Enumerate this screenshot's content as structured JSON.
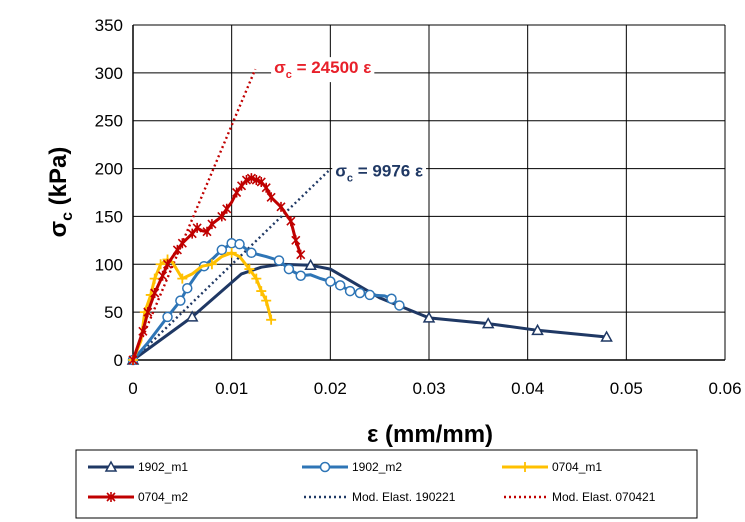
{
  "chart_data": {
    "type": "scatter",
    "title": "",
    "xlabel": "ε (mm/mm)",
    "ylabel_main": "σ",
    "ylabel_sub": "c",
    "ylabel_unit": " (kPa)",
    "xlim": [
      0,
      0.06
    ],
    "ylim": [
      0,
      350
    ],
    "xticks": [
      0,
      0.01,
      0.02,
      0.03,
      0.04,
      0.05,
      0.06
    ],
    "xtick_labels": [
      "0",
      "0.01",
      "0.02",
      "0.03",
      "0.04",
      "0.05",
      "0.06"
    ],
    "yticks": [
      0,
      50,
      100,
      150,
      200,
      250,
      300,
      350
    ],
    "ytick_labels": [
      "0",
      "50",
      "100",
      "150",
      "200",
      "250",
      "300",
      "350"
    ],
    "grid": true,
    "legend_position": "bottom",
    "series": [
      {
        "name": "1902_m1",
        "color": "#1f3864",
        "marker": "triangle",
        "style": "solid",
        "points": [
          [
            0,
            0
          ],
          [
            0.006,
            45
          ],
          [
            0.011,
            90
          ],
          [
            0.013,
            97
          ],
          [
            0.015,
            100
          ],
          [
            0.018,
            99
          ],
          [
            0.02,
            95
          ],
          [
            0.025,
            65
          ],
          [
            0.03,
            44
          ],
          [
            0.036,
            38
          ],
          [
            0.041,
            31
          ],
          [
            0.048,
            24
          ]
        ],
        "marked": [
          [
            0,
            0
          ],
          [
            0.006,
            45
          ],
          [
            0.018,
            99
          ],
          [
            0.03,
            44
          ],
          [
            0.036,
            38
          ],
          [
            0.041,
            31
          ],
          [
            0.048,
            24
          ]
        ]
      },
      {
        "name": "1902_m2",
        "color": "#2e75b6",
        "marker": "circle",
        "style": "solid",
        "points": [
          [
            0,
            0
          ],
          [
            0.0015,
            18
          ],
          [
            0.0035,
            45
          ],
          [
            0.0048,
            62
          ],
          [
            0.0055,
            75
          ],
          [
            0.0065,
            90
          ],
          [
            0.0072,
            98
          ],
          [
            0.0082,
            107
          ],
          [
            0.009,
            115
          ],
          [
            0.01,
            122
          ],
          [
            0.0108,
            121
          ],
          [
            0.012,
            112
          ],
          [
            0.0135,
            108
          ],
          [
            0.0148,
            104
          ],
          [
            0.0158,
            95
          ],
          [
            0.017,
            88
          ],
          [
            0.018,
            89
          ],
          [
            0.019,
            85
          ],
          [
            0.02,
            82
          ],
          [
            0.021,
            78
          ],
          [
            0.022,
            72
          ],
          [
            0.023,
            70
          ],
          [
            0.024,
            68
          ],
          [
            0.0255,
            67
          ],
          [
            0.0262,
            64
          ],
          [
            0.027,
            57
          ]
        ],
        "marked": [
          [
            0,
            0
          ],
          [
            0.0035,
            45
          ],
          [
            0.0048,
            62
          ],
          [
            0.0055,
            75
          ],
          [
            0.0072,
            98
          ],
          [
            0.009,
            115
          ],
          [
            0.01,
            122
          ],
          [
            0.0108,
            121
          ],
          [
            0.012,
            112
          ],
          [
            0.0148,
            104
          ],
          [
            0.0158,
            95
          ],
          [
            0.017,
            88
          ],
          [
            0.02,
            82
          ],
          [
            0.021,
            78
          ],
          [
            0.022,
            72
          ],
          [
            0.023,
            70
          ],
          [
            0.024,
            68
          ],
          [
            0.0262,
            64
          ],
          [
            0.027,
            57
          ]
        ]
      },
      {
        "name": "0704_m1",
        "color": "#ffc000",
        "marker": "plus",
        "style": "solid",
        "points": [
          [
            0,
            0
          ],
          [
            0.0008,
            20
          ],
          [
            0.0012,
            50
          ],
          [
            0.0018,
            68
          ],
          [
            0.0022,
            85
          ],
          [
            0.0028,
            100
          ],
          [
            0.0035,
            105
          ],
          [
            0.004,
            102
          ],
          [
            0.005,
            85
          ],
          [
            0.006,
            90
          ],
          [
            0.007,
            98
          ],
          [
            0.008,
            100
          ],
          [
            0.009,
            108
          ],
          [
            0.01,
            112
          ],
          [
            0.0108,
            108
          ],
          [
            0.0118,
            95
          ],
          [
            0.0125,
            85
          ],
          [
            0.013,
            72
          ],
          [
            0.0135,
            62
          ],
          [
            0.0138,
            50
          ],
          [
            0.014,
            42
          ]
        ],
        "marked": [
          [
            0,
            0
          ],
          [
            0.0012,
            50
          ],
          [
            0.0018,
            68
          ],
          [
            0.0022,
            85
          ],
          [
            0.0028,
            100
          ],
          [
            0.0035,
            105
          ],
          [
            0.005,
            85
          ],
          [
            0.008,
            100
          ],
          [
            0.01,
            112
          ],
          [
            0.0118,
            95
          ],
          [
            0.0125,
            85
          ],
          [
            0.013,
            72
          ],
          [
            0.0135,
            62
          ],
          [
            0.014,
            42
          ]
        ]
      },
      {
        "name": "0704_m2",
        "color": "#c00000",
        "marker": "star",
        "style": "solid",
        "points": [
          [
            0,
            0
          ],
          [
            0.001,
            30
          ],
          [
            0.0015,
            50
          ],
          [
            0.0022,
            70
          ],
          [
            0.003,
            88
          ],
          [
            0.0035,
            100
          ],
          [
            0.0045,
            115
          ],
          [
            0.005,
            122
          ],
          [
            0.006,
            132
          ],
          [
            0.0065,
            138
          ],
          [
            0.007,
            135
          ],
          [
            0.0075,
            134
          ],
          [
            0.008,
            142
          ],
          [
            0.009,
            150
          ],
          [
            0.0095,
            158
          ],
          [
            0.01,
            165
          ],
          [
            0.0105,
            175
          ],
          [
            0.011,
            182
          ],
          [
            0.0115,
            188
          ],
          [
            0.012,
            190
          ],
          [
            0.0125,
            188
          ],
          [
            0.013,
            186
          ],
          [
            0.0135,
            180
          ],
          [
            0.014,
            170
          ],
          [
            0.015,
            160
          ],
          [
            0.016,
            145
          ],
          [
            0.0165,
            125
          ],
          [
            0.017,
            110
          ]
        ],
        "marked": [
          [
            0,
            0
          ],
          [
            0.001,
            30
          ],
          [
            0.0015,
            50
          ],
          [
            0.0022,
            70
          ],
          [
            0.003,
            88
          ],
          [
            0.0035,
            100
          ],
          [
            0.0045,
            115
          ],
          [
            0.005,
            122
          ],
          [
            0.006,
            132
          ],
          [
            0.0065,
            138
          ],
          [
            0.0075,
            134
          ],
          [
            0.008,
            142
          ],
          [
            0.009,
            150
          ],
          [
            0.0095,
            158
          ],
          [
            0.0105,
            175
          ],
          [
            0.011,
            182
          ],
          [
            0.0115,
            188
          ],
          [
            0.012,
            190
          ],
          [
            0.0125,
            188
          ],
          [
            0.013,
            186
          ],
          [
            0.0135,
            180
          ],
          [
            0.014,
            170
          ],
          [
            0.015,
            160
          ],
          [
            0.016,
            145
          ],
          [
            0.0165,
            125
          ],
          [
            0.017,
            110
          ]
        ]
      },
      {
        "name": "Mod. Elast. 190221",
        "color": "#1f3864",
        "marker": "none",
        "style": "dotted",
        "points": [
          [
            0,
            0
          ],
          [
            0.0198,
            197.5
          ]
        ],
        "marked": []
      },
      {
        "name": "Mod. Elast. 070421",
        "color": "#c00000",
        "marker": "none",
        "style": "dotted",
        "points": [
          [
            0,
            0
          ],
          [
            0.0124,
            303.8
          ]
        ],
        "marked": []
      }
    ],
    "annotations": [
      {
        "main": "σ",
        "sub": "c",
        "rest": " = 24500 ε",
        "color": "#e8202a",
        "x": 0.0143,
        "y": 306
      },
      {
        "main": "σ",
        "sub": "c",
        "rest": " = 9976 ε",
        "color": "#1f3864",
        "x": 0.0205,
        "y": 198
      }
    ]
  }
}
